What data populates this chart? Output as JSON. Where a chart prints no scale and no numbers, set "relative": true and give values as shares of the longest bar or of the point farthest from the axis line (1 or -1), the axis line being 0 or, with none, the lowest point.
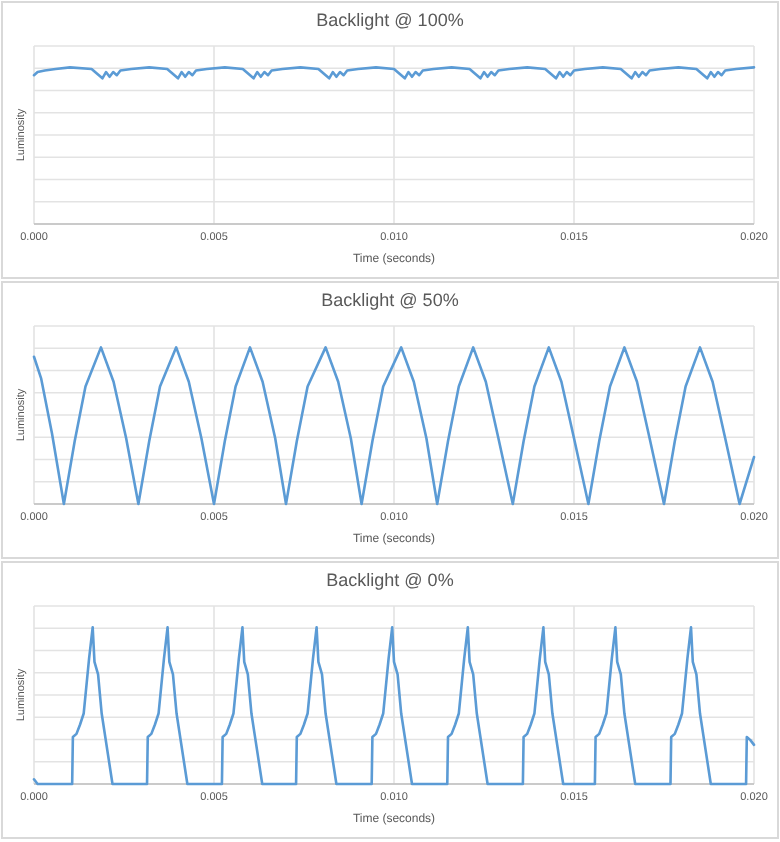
{
  "chart_data": [
    {
      "type": "line",
      "title": "Backlight @ 100%",
      "xlabel": "Time (seconds)",
      "ylabel": "Luminosity",
      "relative": true,
      "grid": true,
      "tick_labels": "x",
      "xlim": [
        0,
        0.02
      ],
      "xticks": [
        {
          "value": 0,
          "label": "0.000"
        },
        {
          "value": 0.005,
          "label": "0.005"
        },
        {
          "value": 0.01,
          "label": "0.010"
        },
        {
          "value": 0.015,
          "label": "0.015"
        },
        {
          "value": 0.02,
          "label": "0.020"
        }
      ],
      "x": [
        0,
        0.0001,
        0.0003,
        0.0006,
        0.001,
        0.0016,
        0.0019,
        0.002,
        0.0021,
        0.0022,
        0.0023,
        0.0024,
        0.0027,
        0.0032,
        0.0037,
        0.004,
        0.0041,
        0.0042,
        0.0043,
        0.0044,
        0.0045,
        0.0048,
        0.0053,
        0.0058,
        0.0061,
        0.0062,
        0.0063,
        0.0064,
        0.0065,
        0.0066,
        0.0069,
        0.0074,
        0.0079,
        0.0082,
        0.0083,
        0.0084,
        0.0085,
        0.0086,
        0.0087,
        0.009,
        0.0095,
        0.01,
        0.0103,
        0.0104,
        0.0105,
        0.0106,
        0.0107,
        0.0108,
        0.0111,
        0.0116,
        0.0121,
        0.0124,
        0.0125,
        0.0126,
        0.0127,
        0.0128,
        0.0129,
        0.0132,
        0.0137,
        0.0142,
        0.0145,
        0.0146,
        0.0147,
        0.0148,
        0.0149,
        0.015,
        0.0153,
        0.0158,
        0.0163,
        0.0166,
        0.0167,
        0.0168,
        0.0169,
        0.017,
        0.0171,
        0.0174,
        0.0179,
        0.0184,
        0.0187,
        0.0188,
        0.0189,
        0.019,
        0.0191,
        0.0192,
        0.0195,
        0.02
      ],
      "series": [
        {
          "color": "#5b9bd5",
          "values": [
            0.95,
            0.97,
            0.98,
            0.99,
            1,
            0.99,
            0.93,
            0.97,
            0.94,
            0.97,
            0.95,
            0.98,
            0.99,
            1,
            0.99,
            0.93,
            0.97,
            0.94,
            0.97,
            0.95,
            0.98,
            0.99,
            1,
            0.99,
            0.93,
            0.97,
            0.94,
            0.97,
            0.95,
            0.98,
            0.99,
            1,
            0.99,
            0.93,
            0.97,
            0.94,
            0.97,
            0.95,
            0.98,
            0.99,
            1,
            0.99,
            0.93,
            0.97,
            0.94,
            0.97,
            0.95,
            0.98,
            0.99,
            1,
            0.99,
            0.93,
            0.97,
            0.94,
            0.97,
            0.95,
            0.98,
            0.99,
            1,
            0.99,
            0.93,
            0.97,
            0.94,
            0.97,
            0.95,
            0.98,
            0.99,
            1,
            0.99,
            0.93,
            0.97,
            0.94,
            0.97,
            0.95,
            0.98,
            0.99,
            1,
            0.99,
            0.93,
            0.97,
            0.94,
            0.97,
            0.95,
            0.98,
            0.99,
            1
          ]
        }
      ]
    },
    {
      "type": "line",
      "title": "Backlight @ 50%",
      "xlabel": "Time (seconds)",
      "ylabel": "Luminosity",
      "relative": true,
      "grid": true,
      "tick_labels": "x",
      "xlim": [
        0,
        0.02
      ],
      "xticks": [
        {
          "value": 0,
          "label": "0.000"
        },
        {
          "value": 0.005,
          "label": "0.005"
        },
        {
          "value": 0.01,
          "label": "0.010"
        },
        {
          "value": 0.015,
          "label": "0.015"
        },
        {
          "value": 0.02,
          "label": "0.020"
        }
      ],
      "x": [
        0,
        0.0002,
        0.0005,
        0.00083,
        0.00113,
        0.00143,
        0.00186,
        0.00221,
        0.00256,
        0.0029,
        0.0032,
        0.0035,
        0.00395,
        0.0043,
        0.00465,
        0.005,
        0.0053,
        0.0056,
        0.006,
        0.00635,
        0.0067,
        0.007,
        0.0073,
        0.0076,
        0.0081,
        0.00845,
        0.0088,
        0.0091,
        0.0094,
        0.0097,
        0.0102,
        0.01055,
        0.0109,
        0.0112,
        0.0115,
        0.0118,
        0.0122,
        0.01255,
        0.0129,
        0.0133,
        0.0136,
        0.0139,
        0.0143,
        0.01465,
        0.015,
        0.0154,
        0.0157,
        0.016,
        0.0164,
        0.01675,
        0.0171,
        0.0175,
        0.0178,
        0.0181,
        0.0185,
        0.01885,
        0.0192,
        0.0196,
        0.02
      ],
      "series": [
        {
          "color": "#5b9bd5",
          "values": [
            0.94,
            0.8,
            0.45,
            0,
            0.4,
            0.75,
            1,
            0.78,
            0.42,
            0,
            0.4,
            0.75,
            1,
            0.78,
            0.42,
            0,
            0.4,
            0.75,
            1,
            0.78,
            0.42,
            0,
            0.4,
            0.75,
            1,
            0.78,
            0.42,
            0,
            0.4,
            0.75,
            1,
            0.78,
            0.42,
            0,
            0.4,
            0.75,
            1,
            0.78,
            0.42,
            0,
            0.4,
            0.75,
            1,
            0.78,
            0.42,
            0,
            0.4,
            0.75,
            1,
            0.78,
            0.42,
            0,
            0.4,
            0.75,
            1,
            0.78,
            0.42,
            0,
            0.3
          ]
        }
      ]
    },
    {
      "type": "line",
      "title": "Backlight @ 0%",
      "xlabel": "Time (seconds)",
      "ylabel": "Luminosity",
      "relative": true,
      "grid": true,
      "tick_labels": "x",
      "xlim": [
        0,
        0.02
      ],
      "xticks": [
        {
          "value": 0,
          "label": "0.000"
        },
        {
          "value": 0.005,
          "label": "0.005"
        },
        {
          "value": 0.01,
          "label": "0.010"
        },
        {
          "value": 0.015,
          "label": "0.015"
        },
        {
          "value": 0.02,
          "label": "0.020"
        }
      ],
      "x": [
        0,
        0.0001,
        0.00106,
        0.00108,
        0.00118,
        0.00128,
        0.00138,
        0.00153,
        0.00163,
        0.00168,
        0.00178,
        0.00188,
        0.00218,
        0.00314,
        0.00316,
        0.00326,
        0.00336,
        0.00346,
        0.00361,
        0.00371,
        0.00376,
        0.00386,
        0.00396,
        0.00426,
        0.00522,
        0.00524,
        0.00534,
        0.00544,
        0.00554,
        0.00569,
        0.00579,
        0.00584,
        0.00594,
        0.00604,
        0.00634,
        0.00728,
        0.0073,
        0.0074,
        0.0075,
        0.0076,
        0.00775,
        0.00785,
        0.0079,
        0.008,
        0.0081,
        0.0084,
        0.00938,
        0.0094,
        0.0095,
        0.0096,
        0.0097,
        0.00985,
        0.00995,
        0.01,
        0.0101,
        0.0102,
        0.0105,
        0.01148,
        0.0115,
        0.0116,
        0.0117,
        0.0118,
        0.01195,
        0.01205,
        0.0121,
        0.0122,
        0.0123,
        0.0126,
        0.01358,
        0.0136,
        0.0137,
        0.0138,
        0.0139,
        0.01405,
        0.01415,
        0.0142,
        0.0143,
        0.0144,
        0.0147,
        0.01558,
        0.0156,
        0.0157,
        0.0158,
        0.0159,
        0.01605,
        0.01615,
        0.0162,
        0.0163,
        0.0164,
        0.0167,
        0.01768,
        0.0177,
        0.0178,
        0.0179,
        0.018,
        0.01815,
        0.01825,
        0.0183,
        0.0184,
        0.0185,
        0.0188,
        0.01978,
        0.0198,
        0.0199,
        0.02
      ],
      "series": [
        {
          "color": "#5b9bd5",
          "values": [
            0.03,
            0,
            0,
            0.3,
            0.32,
            0.38,
            0.45,
            0.8,
            1,
            0.78,
            0.7,
            0.45,
            0,
            0,
            0.3,
            0.32,
            0.38,
            0.45,
            0.8,
            1,
            0.78,
            0.7,
            0.45,
            0,
            0,
            0.3,
            0.32,
            0.38,
            0.45,
            0.8,
            1,
            0.78,
            0.7,
            0.45,
            0,
            0,
            0.3,
            0.32,
            0.38,
            0.45,
            0.8,
            1,
            0.78,
            0.7,
            0.45,
            0,
            0,
            0.3,
            0.32,
            0.38,
            0.45,
            0.8,
            1,
            0.78,
            0.7,
            0.45,
            0,
            0,
            0.3,
            0.32,
            0.38,
            0.45,
            0.8,
            1,
            0.78,
            0.7,
            0.45,
            0,
            0,
            0.3,
            0.32,
            0.38,
            0.45,
            0.8,
            1,
            0.78,
            0.7,
            0.45,
            0,
            0,
            0.3,
            0.32,
            0.38,
            0.45,
            0.8,
            1,
            0.78,
            0.7,
            0.45,
            0,
            0,
            0.3,
            0.32,
            0.38,
            0.45,
            0.8,
            1,
            0.78,
            0.7,
            0.45,
            0,
            0,
            0.3,
            0.28,
            0.25
          ]
        }
      ]
    }
  ]
}
